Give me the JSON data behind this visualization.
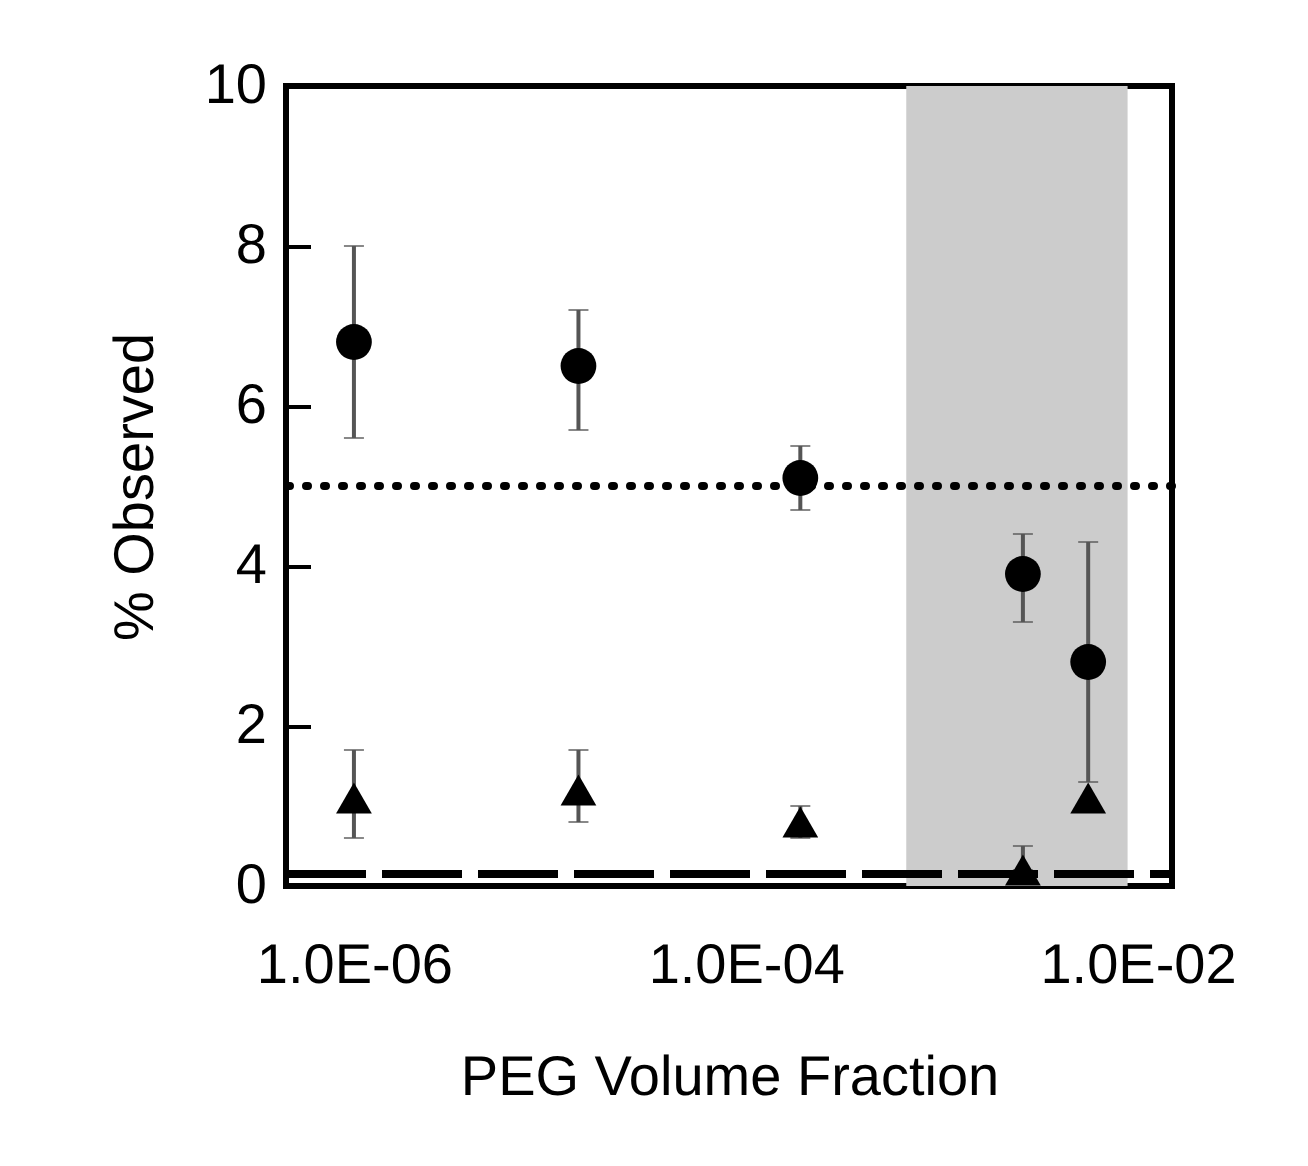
{
  "chart_data": {
    "type": "scatter",
    "xlabel": "PEG Volume Fraction",
    "ylabel": "% Observed",
    "log": "x",
    "xlim": [
      4.5e-07,
      0.015
    ],
    "xticks": [
      {
        "value": 1e-06,
        "label": "1.0E-06"
      },
      {
        "value": 0.0001,
        "label": "1.0E-04"
      },
      {
        "value": 0.01,
        "label": "1.0E-02"
      }
    ],
    "ylim": [
      0,
      10
    ],
    "yticks": [
      0,
      2,
      4,
      6,
      8,
      10
    ],
    "grid": false,
    "series": [
      {
        "color": "#000000",
        "marker": "circle",
        "x": [
          1e-06,
          1.4e-05,
          0.00019,
          0.0026,
          0.0056
        ],
        "values": [
          6.8,
          6.5,
          5.1,
          3.9,
          2.8
        ],
        "errors": [
          [
            5.6,
            8.0
          ],
          [
            5.7,
            7.2
          ],
          [
            4.7,
            5.5
          ],
          [
            3.3,
            4.4
          ],
          [
            1.3,
            4.3
          ]
        ]
      },
      {
        "color": "#000000",
        "marker": "triangle",
        "x": [
          1e-06,
          1.4e-05,
          0.00019,
          0.0026,
          0.0056
        ],
        "values": [
          1.1,
          1.2,
          0.8,
          0.2,
          1.1
        ],
        "errors": [
          [
            0.6,
            1.7
          ],
          [
            0.8,
            1.7
          ],
          [
            0.6,
            1.0
          ],
          [
            0.2,
            0.5
          ],
          null
        ]
      },
      {
        "type": "line",
        "color": "#000000",
        "line_style": "dashed",
        "x": [
          4.5e-07,
          0.015
        ],
        "values": [
          0.15,
          0.15
        ]
      }
    ],
    "ref_lines": [
      {
        "axis": "y",
        "value": 5,
        "line_style": "dotted",
        "color": "#000000"
      }
    ],
    "bands": [
      {
        "axis": "x",
        "from": 0.00066,
        "to": 0.0089,
        "color": "#cccccc"
      }
    ]
  }
}
